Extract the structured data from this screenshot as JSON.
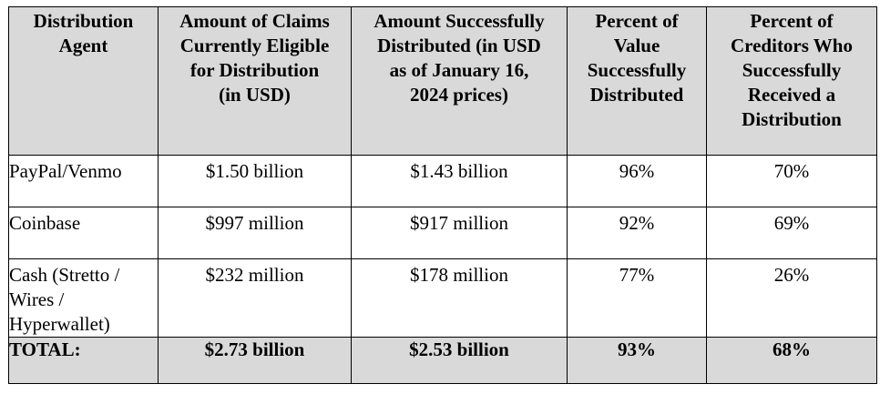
{
  "table": {
    "headers": [
      "Distribution\nAgent",
      "Amount of Claims\nCurrently Eligible\nfor Distribution\n(in USD)",
      "Amount Successfully\nDistributed (in USD\nas of January 16,\n2024 prices)",
      "Percent of\nValue\nSuccessfully\nDistributed",
      "Percent of\nCreditors Who\nSuccessfully\nReceived a\nDistribution"
    ],
    "rows": [
      {
        "agent": "PayPal/Venmo",
        "eligible": "$1.50 billion",
        "distributed": "$1.43 billion",
        "pct_value": "96%",
        "pct_creditors": "70%"
      },
      {
        "agent": "Coinbase",
        "eligible": "$997 million",
        "distributed": "$917 million",
        "pct_value": "92%",
        "pct_creditors": "69%"
      },
      {
        "agent": "Cash (Stretto /\nWires /\nHyperwallet)",
        "eligible": "$232 million",
        "distributed": "$178 million",
        "pct_value": "77%",
        "pct_creditors": "26%"
      }
    ],
    "total": {
      "label": "TOTAL:",
      "eligible": "$2.73 billion",
      "distributed": "$2.53 billion",
      "pct_value": "93%",
      "pct_creditors": "68%"
    },
    "colors": {
      "header_bg": "#d9d9d9",
      "total_bg": "#d9d9d9",
      "border": "#000000"
    }
  }
}
